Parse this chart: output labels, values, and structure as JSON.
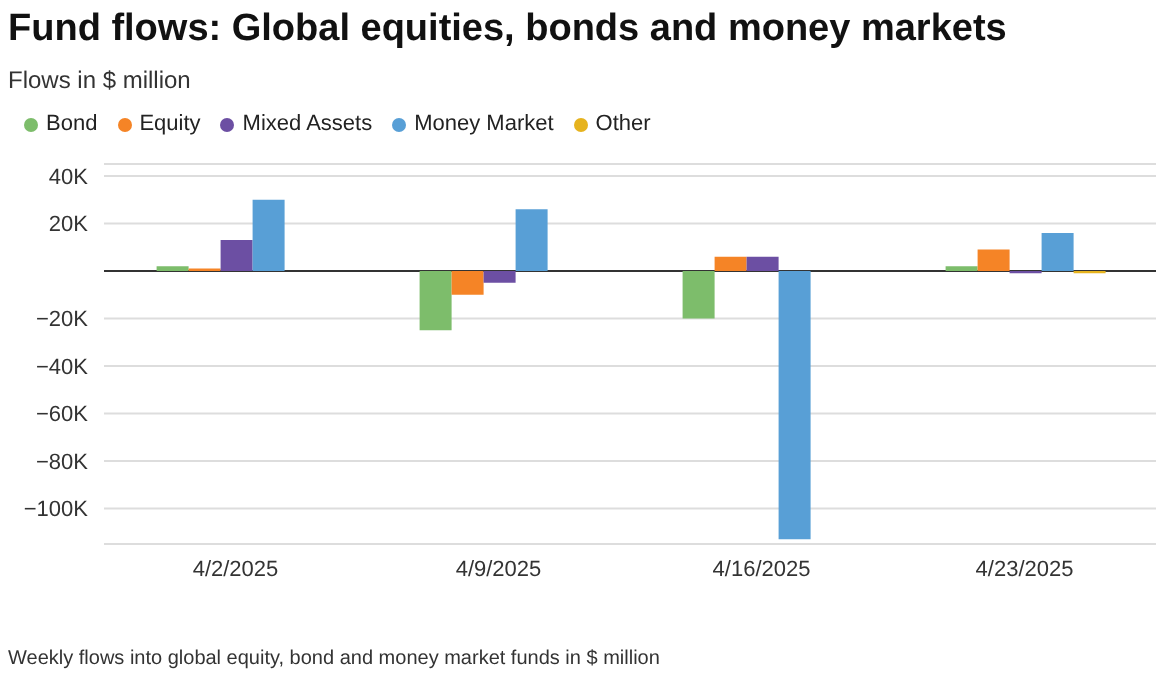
{
  "chart_data": {
    "type": "bar",
    "title": "Fund flows: Global equities, bonds and money markets",
    "subtitle": "Flows in $ million",
    "categories": [
      "4/2/2025",
      "4/9/2025",
      "4/16/2025",
      "4/23/2025"
    ],
    "series": [
      {
        "name": "Bond",
        "color": "#7dbd6b",
        "values": [
          2000,
          -25000,
          -20000,
          2000
        ]
      },
      {
        "name": "Equity",
        "color": "#f58426",
        "values": [
          1000,
          -10000,
          6000,
          9000
        ]
      },
      {
        "name": "Mixed Assets",
        "color": "#6c4fa3",
        "values": [
          13000,
          -5000,
          6000,
          -1000
        ]
      },
      {
        "name": "Money Market",
        "color": "#589fd6",
        "values": [
          30000,
          26000,
          -113000,
          16000
        ]
      },
      {
        "name": "Other",
        "color": "#e6b31e",
        "values": [
          0,
          0,
          0,
          -1000
        ]
      }
    ],
    "ylim": [
      -115000,
      45000
    ],
    "yticks": [
      {
        "value": -100000,
        "label": "−100K"
      },
      {
        "value": -80000,
        "label": "−80K"
      },
      {
        "value": -60000,
        "label": "−60K"
      },
      {
        "value": -40000,
        "label": "−40K"
      },
      {
        "value": -20000,
        "label": "−20K"
      },
      {
        "value": 0,
        "label": null
      },
      {
        "value": 20000,
        "label": "20K"
      },
      {
        "value": 40000,
        "label": "40K"
      }
    ],
    "grid": "y",
    "legend": "top left",
    "annotations": [
      "Weekly flows into global equity, bond and money market funds in $ million"
    ]
  }
}
